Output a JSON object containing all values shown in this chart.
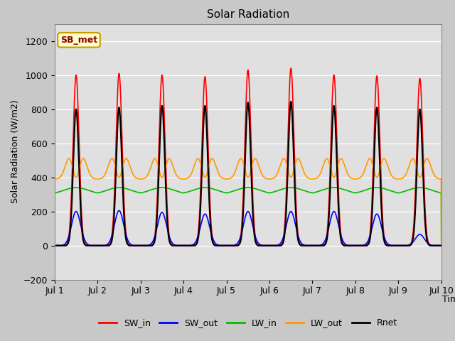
{
  "title": "Solar Radiation",
  "ylabel": "Solar Radiation (W/m2)",
  "xlabel": "Time",
  "ylim": [
    -200,
    1300
  ],
  "yticks": [
    -200,
    0,
    200,
    400,
    600,
    800,
    1000,
    1200
  ],
  "xlim_start": 0,
  "xlim_end": 9,
  "xtick_labels": [
    "Jul 1",
    "Jul 2",
    "Jul 3",
    "Jul 4",
    "Jul 5",
    "Jul 6",
    "Jul 7",
    "Jul 8",
    "Jul 9",
    "Jul 10"
  ],
  "colors": {
    "SW_in": "#ff0000",
    "SW_out": "#0000ff",
    "LW_in": "#00bb00",
    "LW_out": "#ff9900",
    "Rnet": "#000000"
  },
  "annotation_text": "SB_met",
  "annotation_bg": "#ffffcc",
  "annotation_border": "#cc9900",
  "annotation_text_color": "#8b0000",
  "fig_bg_color": "#c8c8c8",
  "plot_bg_color": "#e0e0e0",
  "days": 9,
  "dt": 0.005,
  "SW_in_peaks": [
    1000,
    1010,
    1000,
    990,
    1030,
    1040,
    1000,
    995,
    980
  ],
  "SW_out_peaks": [
    200,
    205,
    195,
    185,
    200,
    200,
    200,
    185,
    65
  ],
  "LW_in_base": 300,
  "LW_in_amp": 40,
  "LW_in_sigma": 0.28,
  "LW_out_base": 390,
  "LW_out_peak": 520,
  "LW_out_dip": 370,
  "Rnet_peaks": [
    800,
    810,
    820,
    820,
    840,
    845,
    820,
    810,
    800
  ],
  "legend_labels": [
    "SW_in",
    "SW_out",
    "LW_in",
    "LW_out",
    "Rnet"
  ],
  "legend_colors": [
    "#ff0000",
    "#0000ff",
    "#00bb00",
    "#ff9900",
    "#000000"
  ]
}
